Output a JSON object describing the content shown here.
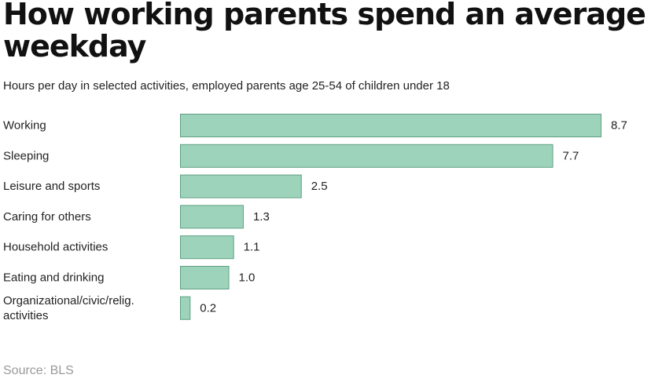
{
  "chart_data": {
    "type": "bar",
    "orientation": "horizontal",
    "title": "How working parents spend an average weekday",
    "subtitle": "Hours per day in selected activities, employed parents age 25-54 of children under 18",
    "categories": [
      [
        "Working"
      ],
      [
        "Sleeping"
      ],
      [
        "Leisure and sports"
      ],
      [
        "Caring for others"
      ],
      [
        "Household activities"
      ],
      [
        "Eating and drinking"
      ],
      [
        "Organizational/civic/relig.",
        "activities"
      ]
    ],
    "values": [
      8.7,
      7.7,
      2.5,
      1.3,
      1.1,
      1.0,
      0.2
    ],
    "value_labels": [
      "8.7",
      "7.7",
      "2.5",
      "1.3",
      "1.1",
      "1.0",
      "0.2"
    ],
    "xlim": [
      0,
      8.7
    ],
    "grid": false,
    "bar_color": "#9dd3bb",
    "bar_edge_color": "#5f9f83"
  },
  "source": "Source: BLS"
}
